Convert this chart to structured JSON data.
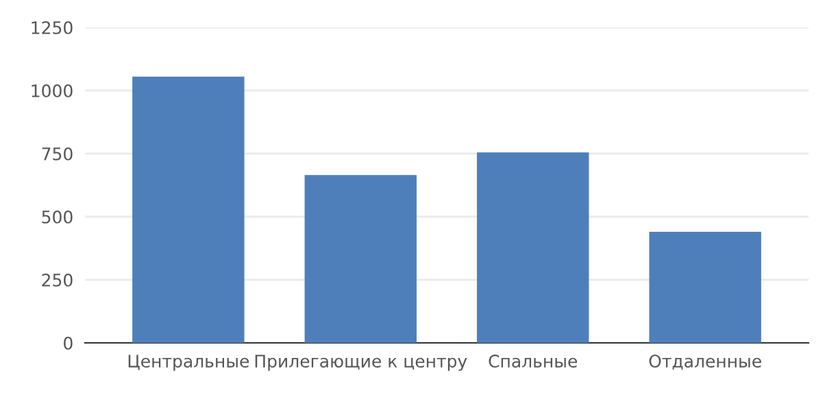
{
  "chart_data": {
    "type": "bar",
    "categories": [
      "Центральные",
      "Прилегающие к центру",
      "Спальные",
      "Отдаленные"
    ],
    "values": [
      1055,
      665,
      755,
      440
    ],
    "color": "#4e7fbb",
    "ylim": [
      0,
      1250
    ],
    "yticks": [
      0,
      250,
      500,
      750,
      1000,
      1250
    ],
    "grid": "y"
  }
}
